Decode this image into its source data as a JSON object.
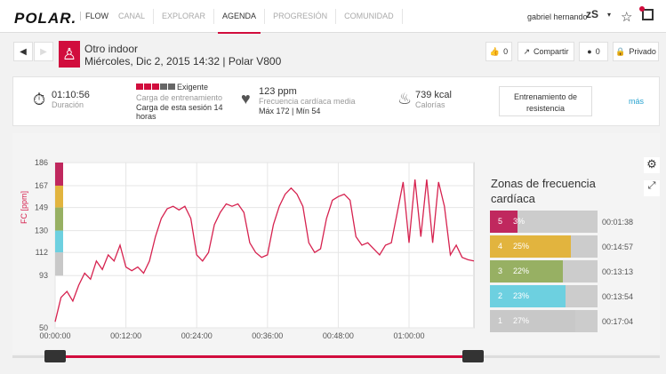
{
  "header": {
    "brand": "POLAR.",
    "product": "FLOW",
    "nav": [
      "CANAL",
      "EXPLORAR",
      "AGENDA",
      "PROGRESIÓN",
      "COMUNIDAD"
    ],
    "active": "AGENDA",
    "user": "gabriel hernando",
    "avatar": "zS"
  },
  "session": {
    "sport": "Otro indoor",
    "date": "Miércoles, Dic 2, 2015 14:32 | Polar V800",
    "likes": "0",
    "share": "Compartir",
    "comments": "0",
    "privacy": "Privado"
  },
  "summary": {
    "duration": "01:10:56",
    "duration_label": "Duración",
    "load_level": "Exigente",
    "load_label": "Carga de entrenamiento",
    "load_text": "Carga de esta sesión 14 horas",
    "hr": "123 ppm",
    "hr_label": "Frecuencia cardíaca media",
    "hr_range": "Máx 172  |  Mín 54",
    "kcal": "739 kcal",
    "kcal_label": "Calorías",
    "type_button": "Entrenamiento de resistencia",
    "more": "más"
  },
  "zones": {
    "title": "Zonas de frecuencia cardíaca",
    "items": [
      {
        "zone": "5",
        "pct": "3%",
        "pct_value": 3,
        "time": "00:01:38",
        "color": "#c0285e"
      },
      {
        "zone": "4",
        "pct": "25%",
        "pct_value": 25,
        "time": "00:14:57",
        "color": "#e2b43e"
      },
      {
        "zone": "3",
        "pct": "22%",
        "pct_value": 22,
        "time": "00:13:13",
        "color": "#97b063"
      },
      {
        "zone": "2",
        "pct": "23%",
        "pct_value": 23,
        "time": "00:13:54",
        "color": "#6dd0e0"
      },
      {
        "zone": "1",
        "pct": "27%",
        "pct_value": 27,
        "time": "00:17:04",
        "color": "#c8c8c8"
      }
    ]
  },
  "chart_data": {
    "type": "line",
    "ylabel": "FC [ppm]",
    "ylim": [
      50,
      186
    ],
    "xlim": [
      0,
      71
    ],
    "yticks": [
      186,
      167,
      149,
      130,
      112,
      93,
      50
    ],
    "xticks": [
      {
        "v": 0,
        "l": "00:00:00"
      },
      {
        "v": 12,
        "l": "00:12:00"
      },
      {
        "v": 24,
        "l": "00:24:00"
      },
      {
        "v": 36,
        "l": "00:36:00"
      },
      {
        "v": 48,
        "l": "00:48:00"
      },
      {
        "v": 60,
        "l": "01:00:00"
      }
    ],
    "x": [
      0,
      1,
      2,
      3,
      4,
      5,
      6,
      7,
      8,
      9,
      10,
      11,
      12,
      13,
      14,
      15,
      16,
      17,
      18,
      19,
      20,
      21,
      22,
      23,
      24,
      25,
      26,
      27,
      28,
      29,
      30,
      31,
      32,
      33,
      34,
      35,
      36,
      37,
      38,
      39,
      40,
      41,
      42,
      43,
      44,
      45,
      46,
      47,
      48,
      49,
      50,
      51,
      52,
      53,
      54,
      55,
      56,
      57,
      58,
      59,
      60,
      61,
      62,
      63,
      64,
      65,
      66,
      67,
      68,
      69,
      70,
      71
    ],
    "y": [
      55,
      75,
      80,
      72,
      85,
      95,
      90,
      105,
      98,
      110,
      105,
      118,
      100,
      97,
      100,
      95,
      105,
      125,
      140,
      148,
      150,
      147,
      150,
      140,
      110,
      105,
      112,
      135,
      145,
      152,
      150,
      152,
      145,
      120,
      112,
      108,
      110,
      135,
      150,
      160,
      165,
      160,
      150,
      120,
      112,
      115,
      140,
      155,
      158,
      160,
      155,
      125,
      118,
      120,
      115,
      110,
      118,
      120,
      145,
      170,
      120,
      172,
      125,
      172,
      120,
      170,
      150,
      110,
      118,
      108,
      106,
      105
    ],
    "color": "#d6224f"
  }
}
